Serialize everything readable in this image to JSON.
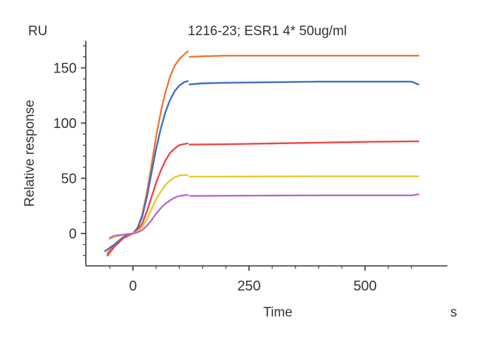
{
  "chart_data": {
    "type": "line",
    "title": "1216-23; ESR1 4*  50ug/ml",
    "xlabel": "Time",
    "x_unit": "s",
    "ylabel": "Relative response",
    "y_unit": "RU",
    "xlim": [
      -80,
      640
    ],
    "ylim": [
      -28,
      175
    ],
    "x_ticks": [
      0,
      250,
      500
    ],
    "y_ticks": [
      0,
      50,
      100,
      150
    ],
    "x_tick_labels": [
      "0",
      "250",
      "500"
    ],
    "y_tick_labels": [
      "0",
      "50",
      "100",
      "150"
    ],
    "grid": false,
    "series": [
      {
        "color": "#ee7733",
        "association": {
          "x": [
            -55,
            -40,
            -20,
            0,
            10,
            20,
            30,
            40,
            50,
            60,
            70,
            80,
            90,
            100,
            110,
            118
          ],
          "y": [
            -18,
            -10,
            -3,
            0,
            5,
            17,
            37,
            62,
            88,
            110,
            128,
            142,
            152,
            158,
            162,
            165
          ]
        },
        "dissociation": {
          "x": [
            122,
            150,
            200,
            300,
            400,
            500,
            615
          ],
          "y": [
            160,
            160.5,
            161,
            161,
            161,
            161,
            161
          ]
        }
      },
      {
        "color": "#3a6fc4",
        "association": {
          "x": [
            -60,
            -40,
            -20,
            0,
            10,
            20,
            30,
            40,
            50,
            60,
            70,
            80,
            90,
            100,
            110,
            118
          ],
          "y": [
            -16,
            -10,
            -3,
            0,
            5,
            15,
            33,
            55,
            77,
            95,
            110,
            121,
            129,
            134,
            137,
            138
          ]
        },
        "dissociation": {
          "x": [
            122,
            150,
            200,
            300,
            400,
            500,
            600,
            615
          ],
          "y": [
            135,
            136,
            136.5,
            137,
            137.5,
            137.5,
            137.5,
            135
          ]
        }
      },
      {
        "color": "#ee4444",
        "association": {
          "x": [
            -55,
            -40,
            -20,
            0,
            10,
            20,
            30,
            40,
            50,
            60,
            70,
            80,
            90,
            100,
            110,
            118
          ],
          "y": [
            -20,
            -12,
            -4,
            0,
            3,
            9,
            20,
            33,
            46,
            57,
            66,
            73,
            77,
            80,
            81,
            81.5
          ]
        },
        "dissociation": {
          "x": [
            122,
            200,
            300,
            400,
            500,
            615
          ],
          "y": [
            80.5,
            80.8,
            81.5,
            82.3,
            83,
            83.5
          ]
        }
      },
      {
        "color": "#e6c830",
        "association": {
          "x": [
            -50,
            -40,
            -20,
            0,
            10,
            20,
            30,
            40,
            50,
            60,
            70,
            80,
            90,
            100,
            110,
            118
          ],
          "y": [
            -5,
            -3,
            -1,
            0,
            2,
            6,
            13,
            22,
            31,
            38,
            44,
            48,
            51,
            52.5,
            53,
            53
          ]
        },
        "dissociation": {
          "x": [
            122,
            200,
            300,
            400,
            500,
            615
          ],
          "y": [
            51.5,
            51.5,
            51.7,
            51.8,
            51.8,
            51.8
          ]
        }
      },
      {
        "color": "#bb66cc",
        "association": {
          "x": [
            -50,
            -40,
            -20,
            0,
            10,
            20,
            30,
            40,
            50,
            60,
            70,
            80,
            90,
            100,
            110,
            118
          ],
          "y": [
            -4,
            -2,
            -1,
            0,
            1,
            3,
            7,
            12,
            18,
            23,
            27,
            30,
            32.5,
            34,
            34.5,
            35
          ]
        },
        "dissociation": {
          "x": [
            122,
            200,
            300,
            400,
            500,
            600,
            615
          ],
          "y": [
            34,
            34.2,
            34.4,
            34.5,
            34.5,
            34.5,
            35.5
          ]
        }
      }
    ]
  }
}
